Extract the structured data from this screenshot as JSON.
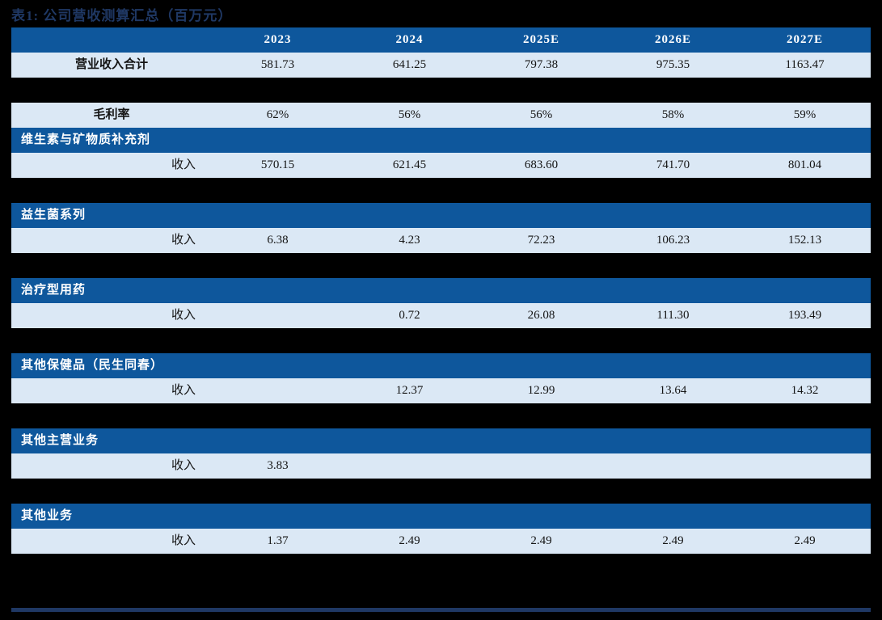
{
  "title": "表1: 公司营收测算汇总（百万元）",
  "colors": {
    "page_background": "#000000",
    "header_band": "#0E579C",
    "data_band": "#DBE8F5",
    "title_text": "#1F3864",
    "header_text": "#FFFFFF",
    "body_text": "#141414",
    "bottom_rule": "#1F3864"
  },
  "table": {
    "columns": [
      "2023",
      "2024",
      "2025E",
      "2026E",
      "2027E"
    ],
    "total_row": {
      "label": "营业收入合计",
      "values": [
        "581.73",
        "641.25",
        "797.38",
        "975.35",
        "1163.47"
      ]
    },
    "gross_margin_row": {
      "label": "毛利率",
      "values": [
        "62%",
        "56%",
        "56%",
        "58%",
        "59%"
      ]
    },
    "sections": [
      {
        "title": "维生素与矿物质补充剂",
        "metric": "收入",
        "values": [
          "570.15",
          "621.45",
          "683.60",
          "741.70",
          "801.04"
        ]
      },
      {
        "title": "益生菌系列",
        "metric": "收入",
        "values": [
          "6.38",
          "4.23",
          "72.23",
          "106.23",
          "152.13"
        ]
      },
      {
        "title": "治疗型用药",
        "metric": "收入",
        "values": [
          "",
          "0.72",
          "26.08",
          "111.30",
          "193.49"
        ]
      },
      {
        "title": "其他保健品（民生同春）",
        "metric": "收入",
        "values": [
          "",
          "12.37",
          "12.99",
          "13.64",
          "14.32"
        ]
      },
      {
        "title": "其他主营业务",
        "metric": "收入",
        "values": [
          "3.83",
          "",
          "",
          "",
          ""
        ]
      },
      {
        "title": "其他业务",
        "metric": "收入",
        "values": [
          "1.37",
          "2.49",
          "2.49",
          "2.49",
          "2.49"
        ]
      }
    ]
  },
  "chart_data": {
    "type": "table",
    "title": "表1: 公司营收测算汇总（百万元）",
    "categories": [
      "2023",
      "2024",
      "2025E",
      "2026E",
      "2027E"
    ],
    "series": [
      {
        "name": "营业收入合计",
        "values": [
          581.73,
          641.25,
          797.38,
          975.35,
          1163.47
        ]
      },
      {
        "name": "毛利率",
        "values": [
          "62%",
          "56%",
          "56%",
          "58%",
          "59%"
        ]
      },
      {
        "name": "维生素与矿物质补充剂-收入",
        "values": [
          570.15,
          621.45,
          683.6,
          741.7,
          801.04
        ]
      },
      {
        "name": "益生菌系列-收入",
        "values": [
          6.38,
          4.23,
          72.23,
          106.23,
          152.13
        ]
      },
      {
        "name": "治疗型用药-收入",
        "values": [
          null,
          0.72,
          26.08,
          111.3,
          193.49
        ]
      },
      {
        "name": "其他保健品（民生同春）-收入",
        "values": [
          null,
          12.37,
          12.99,
          13.64,
          14.32
        ]
      },
      {
        "name": "其他主营业务-收入",
        "values": [
          3.83,
          null,
          null,
          null,
          null
        ]
      },
      {
        "name": "其他业务-收入",
        "values": [
          1.37,
          2.49,
          2.49,
          2.49,
          2.49
        ]
      }
    ]
  }
}
